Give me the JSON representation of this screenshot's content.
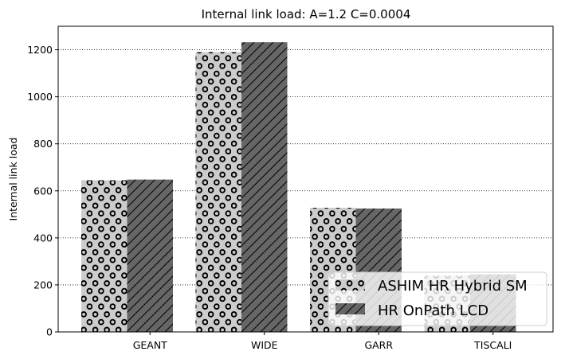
{
  "chart_data": {
    "type": "bar",
    "title": "Internal link load: A=1.2 C=0.0004",
    "xlabel": "",
    "ylabel": "Internal link load",
    "categories": [
      "GEANT",
      "WIDE",
      "GARR",
      "TISCALI"
    ],
    "series": [
      {
        "name": "ASHIM HR Hybrid SM",
        "values": [
          645,
          1190,
          528,
          240
        ],
        "color": "#cccccc",
        "hatch": "circles"
      },
      {
        "name": "HR OnPath LCD",
        "values": [
          648,
          1232,
          525,
          245
        ],
        "color": "#666666",
        "hatch": "diagonal"
      }
    ],
    "ylim": [
      0,
      1300
    ],
    "yticks": [
      0,
      200,
      400,
      600,
      800,
      1000,
      1200
    ],
    "grid": "y-dotted",
    "legend_position": "bottom-right"
  }
}
